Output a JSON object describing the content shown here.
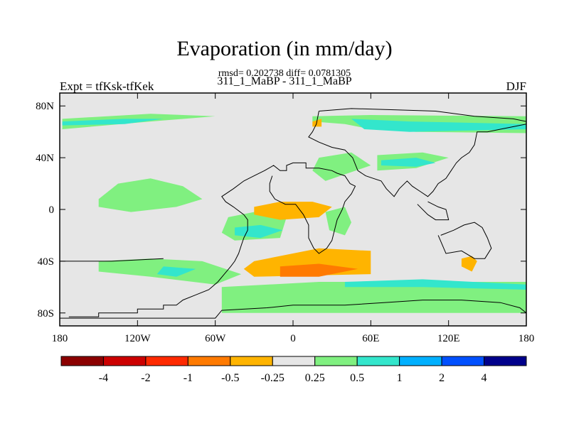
{
  "chart_data": {
    "type": "heatmap",
    "title": "Evaporation (in mm/day)",
    "stats": "rmsd= 0.202738 diff= 0.0781305",
    "subtitle": "311_1_MaBP - 311_1_MaBP",
    "left_label": "Expt = tfKsk-tfKek",
    "right_label": "DJF",
    "x_range": [
      -180,
      180
    ],
    "y_range": [
      -90,
      90
    ],
    "x_ticks": [
      {
        "value": -180,
        "label": "180"
      },
      {
        "value": -120,
        "label": "120W"
      },
      {
        "value": -60,
        "label": "60W"
      },
      {
        "value": 0,
        "label": "0"
      },
      {
        "value": 60,
        "label": "60E"
      },
      {
        "value": 120,
        "label": "120E"
      },
      {
        "value": 180,
        "label": "180"
      }
    ],
    "y_ticks": [
      {
        "value": 80,
        "label": "80N"
      },
      {
        "value": 40,
        "label": "40N"
      },
      {
        "value": 0,
        "label": "0"
      },
      {
        "value": -40,
        "label": "40S"
      },
      {
        "value": -80,
        "label": "80S"
      }
    ],
    "colorbar": {
      "labels": [
        "-4",
        "-2",
        "-1",
        "-0.5",
        "-0.25",
        "0.25",
        "0.5",
        "1",
        "2",
        "4"
      ],
      "colors": [
        "#8b0000",
        "#cc0000",
        "#ff2a00",
        "#ff7a00",
        "#ffb400",
        "#e6e6e6",
        "#80f080",
        "#33e6cc",
        "#00b0ff",
        "#0050ff",
        "#00008b"
      ]
    },
    "background_color": "#e6e6e6",
    "regions": [
      {
        "level": "0.25",
        "color": "#80f080",
        "points": [
          [
            -178,
            70
          ],
          [
            -110,
            74
          ],
          [
            -60,
            72
          ],
          [
            -110,
            68
          ],
          [
            -178,
            62
          ]
        ]
      },
      {
        "level": "0.5",
        "color": "#33e6cc",
        "points": [
          [
            -178,
            68
          ],
          [
            -130,
            70
          ],
          [
            -100,
            70
          ],
          [
            -130,
            66
          ],
          [
            -178,
            65
          ]
        ]
      },
      {
        "level": "0.25",
        "color": "#80f080",
        "points": [
          [
            15,
            72
          ],
          [
            60,
            73
          ],
          [
            180,
            72
          ],
          [
            180,
            59
          ],
          [
            95,
            60
          ],
          [
            60,
            62
          ],
          [
            40,
            66
          ],
          [
            15,
            68
          ]
        ]
      },
      {
        "level": "0.5",
        "color": "#33e6cc",
        "points": [
          [
            45,
            70
          ],
          [
            90,
            68
          ],
          [
            180,
            66
          ],
          [
            180,
            62
          ],
          [
            90,
            60
          ],
          [
            55,
            62
          ]
        ]
      },
      {
        "level": "0.25",
        "color": "#80f080",
        "points": [
          [
            -150,
            8
          ],
          [
            -135,
            20
          ],
          [
            -110,
            24
          ],
          [
            -85,
            18
          ],
          [
            -70,
            8
          ],
          [
            -90,
            2
          ],
          [
            -125,
            -2
          ],
          [
            -150,
            2
          ]
        ]
      },
      {
        "level": "0.25",
        "color": "#80f080",
        "points": [
          [
            -150,
            -40
          ],
          [
            -110,
            -38
          ],
          [
            -70,
            -40
          ],
          [
            -40,
            -50
          ],
          [
            -60,
            -58
          ],
          [
            -110,
            -52
          ],
          [
            -150,
            -48
          ]
        ]
      },
      {
        "level": "0.5",
        "color": "#33e6cc",
        "points": [
          [
            -100,
            -44
          ],
          [
            -75,
            -46
          ],
          [
            -90,
            -52
          ],
          [
            -105,
            -50
          ]
        ]
      },
      {
        "level": "0.25",
        "color": "#80f080",
        "points": [
          [
            -50,
            -6
          ],
          [
            -30,
            -2
          ],
          [
            -5,
            -6
          ],
          [
            -10,
            -22
          ],
          [
            -45,
            -24
          ],
          [
            -55,
            -18
          ]
        ]
      },
      {
        "level": "0.5",
        "color": "#33e6cc",
        "points": [
          [
            -45,
            -14
          ],
          [
            -25,
            -12
          ],
          [
            -8,
            -16
          ],
          [
            -25,
            -22
          ],
          [
            -45,
            -20
          ]
        ]
      },
      {
        "level": "0.25",
        "color": "#80f080",
        "points": [
          [
            -55,
            -60
          ],
          [
            20,
            -56
          ],
          [
            180,
            -56
          ],
          [
            180,
            -80
          ],
          [
            -55,
            -80
          ]
        ]
      },
      {
        "level": "0.5",
        "color": "#33e6cc",
        "points": [
          [
            40,
            -56
          ],
          [
            100,
            -54
          ],
          [
            180,
            -58
          ],
          [
            180,
            -62
          ],
          [
            100,
            -60
          ],
          [
            40,
            -60
          ]
        ]
      },
      {
        "level": "0.25",
        "color": "#80f080",
        "points": [
          [
            20,
            40
          ],
          [
            45,
            44
          ],
          [
            60,
            34
          ],
          [
            25,
            22
          ],
          [
            15,
            30
          ]
        ]
      },
      {
        "level": "0.25",
        "color": "#80f080",
        "points": [
          [
            65,
            42
          ],
          [
            100,
            44
          ],
          [
            120,
            40
          ],
          [
            95,
            32
          ],
          [
            65,
            30
          ]
        ]
      },
      {
        "level": "0.5",
        "color": "#33e6cc",
        "points": [
          [
            68,
            38
          ],
          [
            95,
            40
          ],
          [
            110,
            36
          ],
          [
            95,
            33
          ],
          [
            68,
            34
          ]
        ]
      },
      {
        "level": "0.25",
        "color": "#80f080",
        "points": [
          [
            25,
            -2
          ],
          [
            40,
            2
          ],
          [
            45,
            -10
          ],
          [
            40,
            -20
          ],
          [
            28,
            -16
          ]
        ]
      },
      {
        "level": "-0.25",
        "color": "#ffb400",
        "points": [
          [
            -30,
            -40
          ],
          [
            20,
            -30
          ],
          [
            60,
            -32
          ],
          [
            60,
            -50
          ],
          [
            -30,
            -52
          ],
          [
            -38,
            -46
          ]
        ]
      },
      {
        "level": "-0.5",
        "color": "#ff7a00",
        "points": [
          [
            -10,
            -44
          ],
          [
            20,
            -42
          ],
          [
            50,
            -46
          ],
          [
            20,
            -52
          ],
          [
            -10,
            -52
          ]
        ]
      },
      {
        "level": "-0.25",
        "color": "#ffb400",
        "points": [
          [
            -30,
            2
          ],
          [
            -10,
            6
          ],
          [
            15,
            6
          ],
          [
            30,
            2
          ],
          [
            20,
            -6
          ],
          [
            -10,
            -8
          ],
          [
            -30,
            -4
          ]
        ]
      },
      {
        "level": "-0.25",
        "color": "#ffb400",
        "points": [
          [
            130,
            -38
          ],
          [
            138,
            -36
          ],
          [
            142,
            -40
          ],
          [
            138,
            -48
          ],
          [
            130,
            -44
          ]
        ]
      },
      {
        "level": "-0.25",
        "color": "#ffb400",
        "points": [
          [
            15,
            68
          ],
          [
            22,
            70
          ],
          [
            22,
            64
          ],
          [
            15,
            64
          ]
        ]
      }
    ],
    "coastlines": [
      [
        [
          -173,
          -83
        ],
        [
          -150,
          -83
        ],
        [
          -150,
          -80
        ],
        [
          -120,
          -80
        ],
        [
          -120,
          -77
        ],
        [
          -100,
          -77
        ],
        [
          -100,
          -74
        ],
        [
          -90,
          -74
        ],
        [
          -85,
          -70
        ],
        [
          -75,
          -66
        ],
        [
          -65,
          -62
        ],
        [
          -58,
          -56
        ],
        [
          -53,
          -50
        ],
        [
          -48,
          -44
        ],
        [
          -45,
          -40
        ],
        [
          -42,
          -34
        ],
        [
          -40,
          -28
        ],
        [
          -38,
          -22
        ],
        [
          -35,
          -16
        ],
        [
          -35,
          -8
        ],
        [
          -38,
          -4
        ],
        [
          -46,
          2
        ],
        [
          -52,
          6
        ],
        [
          -55,
          10
        ],
        [
          -46,
          16
        ],
        [
          -38,
          22
        ],
        [
          -30,
          26
        ],
        [
          -22,
          30
        ],
        [
          -15,
          34
        ],
        [
          -10,
          30
        ],
        [
          -5,
          30
        ],
        [
          -5,
          34
        ],
        [
          0,
          36
        ],
        [
          10,
          36
        ],
        [
          10,
          32
        ],
        [
          20,
          32
        ],
        [
          30,
          30
        ],
        [
          34,
          28
        ],
        [
          40,
          26
        ],
        [
          44,
          20
        ],
        [
          48,
          18
        ],
        [
          45,
          12
        ],
        [
          40,
          6
        ],
        [
          38,
          0
        ],
        [
          34,
          -8
        ],
        [
          32,
          -16
        ],
        [
          30,
          -24
        ],
        [
          26,
          -30
        ],
        [
          20,
          -34
        ],
        [
          16,
          -30
        ],
        [
          12,
          -22
        ],
        [
          12,
          -12
        ],
        [
          8,
          -4
        ],
        [
          2,
          4
        ],
        [
          -6,
          4
        ],
        [
          -14,
          8
        ],
        [
          -18,
          14
        ],
        [
          -18,
          20
        ],
        [
          -16,
          26
        ]
      ],
      [
        [
          -180,
          -86
        ],
        [
          -180,
          -84
        ],
        [
          -60,
          -84
        ],
        [
          -55,
          -78
        ],
        [
          -20,
          -76
        ],
        [
          0,
          -74
        ],
        [
          40,
          -74
        ],
        [
          70,
          -72
        ],
        [
          100,
          -70
        ],
        [
          130,
          -70
        ],
        [
          160,
          -72
        ],
        [
          175,
          -76
        ],
        [
          180,
          -80
        ],
        [
          180,
          -86
        ]
      ],
      [
        [
          20,
          76
        ],
        [
          45,
          78
        ],
        [
          80,
          77
        ],
        [
          110,
          76
        ],
        [
          140,
          72
        ],
        [
          170,
          70
        ],
        [
          180,
          68
        ]
      ],
      [
        [
          20,
          76
        ],
        [
          18,
          66
        ],
        [
          15,
          60
        ],
        [
          12,
          56
        ],
        [
          20,
          52
        ],
        [
          30,
          48
        ],
        [
          40,
          46
        ],
        [
          46,
          40
        ],
        [
          50,
          30
        ],
        [
          56,
          26
        ],
        [
          62,
          24
        ],
        [
          68,
          22
        ],
        [
          72,
          16
        ],
        [
          78,
          10
        ],
        [
          82,
          16
        ],
        [
          88,
          22
        ],
        [
          92,
          18
        ],
        [
          98,
          14
        ],
        [
          104,
          10
        ],
        [
          108,
          14
        ],
        [
          112,
          20
        ],
        [
          118,
          24
        ],
        [
          122,
          30
        ],
        [
          126,
          36
        ],
        [
          130,
          40
        ],
        [
          136,
          44
        ],
        [
          140,
          50
        ],
        [
          142,
          60
        ],
        [
          150,
          60
        ],
        [
          160,
          62
        ],
        [
          170,
          64
        ],
        [
          180,
          66
        ]
      ],
      [
        [
          96,
          4
        ],
        [
          104,
          -4
        ],
        [
          110,
          -8
        ],
        [
          120,
          -8
        ],
        [
          118,
          0
        ],
        [
          112,
          2
        ],
        [
          104,
          6
        ]
      ],
      [
        [
          112,
          -20
        ],
        [
          118,
          -34
        ],
        [
          130,
          -32
        ],
        [
          140,
          -38
        ],
        [
          148,
          -38
        ],
        [
          153,
          -30
        ],
        [
          150,
          -22
        ],
        [
          146,
          -14
        ],
        [
          140,
          -10
        ],
        [
          132,
          -12
        ],
        [
          124,
          -16
        ],
        [
          114,
          -20
        ]
      ],
      [
        [
          -180,
          -40
        ],
        [
          -140,
          -40
        ],
        [
          -100,
          -38
        ]
      ]
    ]
  }
}
